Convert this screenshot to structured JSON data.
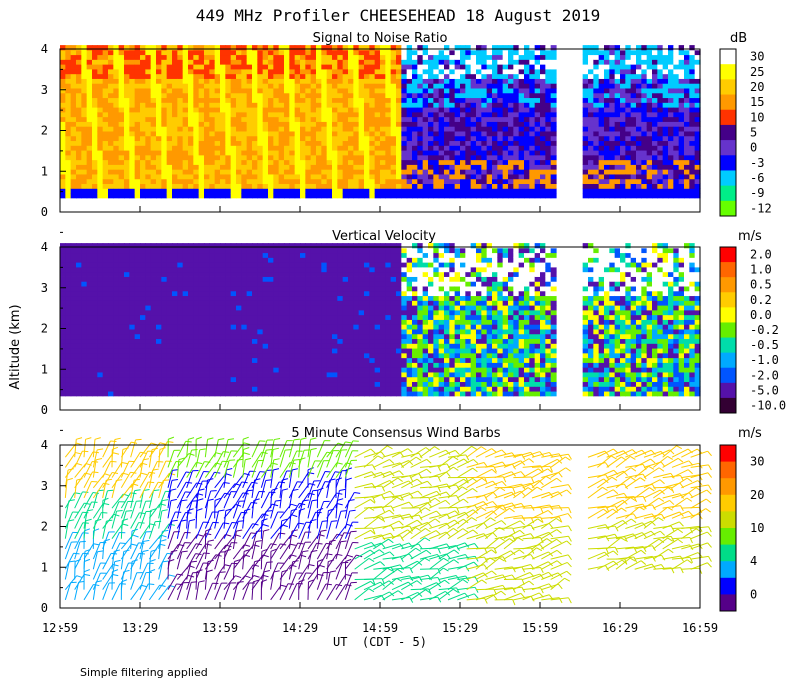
{
  "chart_data": [
    {
      "type": "heatmap",
      "title": "Signal to Noise Ratio",
      "ylabel": "Altitude (km)",
      "ylim": [
        0,
        4
      ],
      "yticks": [
        0,
        1,
        2,
        3,
        4
      ],
      "colorbar": {
        "unit": "dB",
        "ticks": [
          "30",
          "25",
          "20",
          "15",
          "10",
          "5",
          "0",
          "-3",
          "-6",
          "-9",
          "-12"
        ],
        "colors": [
          "#ffffff",
          "#ffff00",
          "#ffcc00",
          "#ff9900",
          "#ff3300",
          "#440088",
          "#6633cc",
          "#0000ff",
          "#00ccff",
          "#00ee88",
          "#66ff00"
        ]
      }
    },
    {
      "type": "heatmap",
      "title": "Vertical Velocity",
      "ylabel": "Altitude (km)",
      "ylim": [
        0,
        4
      ],
      "yticks": [
        0,
        1,
        2,
        3,
        4
      ],
      "colorbar": {
        "unit": "m/s",
        "ticks": [
          "2.0",
          "1.0",
          "0.5",
          "0.2",
          "0.0",
          "-0.2",
          "-0.5",
          "-1.0",
          "-2.0",
          "-5.0",
          "-10.0"
        ],
        "colors": [
          "#ff0000",
          "#ff6600",
          "#ff9900",
          "#ffcc00",
          "#ffff00",
          "#66ee00",
          "#00ddaa",
          "#00aaff",
          "#0055ff",
          "#5511aa",
          "#330033"
        ]
      }
    },
    {
      "type": "scatter",
      "title": "5 Minute Consensus Wind Barbs",
      "ylabel": "Altitude (km)",
      "ylim": [
        0,
        4
      ],
      "yticks": [
        0,
        1,
        2,
        3,
        4
      ],
      "colorbar": {
        "unit": "m/s",
        "ticks": [
          "30",
          "20",
          "10",
          "4",
          "0"
        ],
        "colors": [
          "#ff0000",
          "#ff6600",
          "#ff9900",
          "#ffcc00",
          "#ccdd00",
          "#66ee00",
          "#00dd88",
          "#00aaff",
          "#0000ff",
          "#550088"
        ]
      }
    }
  ],
  "figure": {
    "title": "449 MHz Profiler CHEESEHEAD 18 August 2019",
    "ylabel": "Altitude (km)",
    "xlabel": "UT  (CDT - 5)",
    "xticks": [
      "12:59",
      "13:29",
      "13:59",
      "14:29",
      "14:59",
      "15:29",
      "15:59",
      "16:29",
      "16:59"
    ],
    "xrange_minutes": [
      0,
      240
    ],
    "data_gap_minutes": [
      186,
      196
    ]
  },
  "footer_note": "Simple filtering applied"
}
